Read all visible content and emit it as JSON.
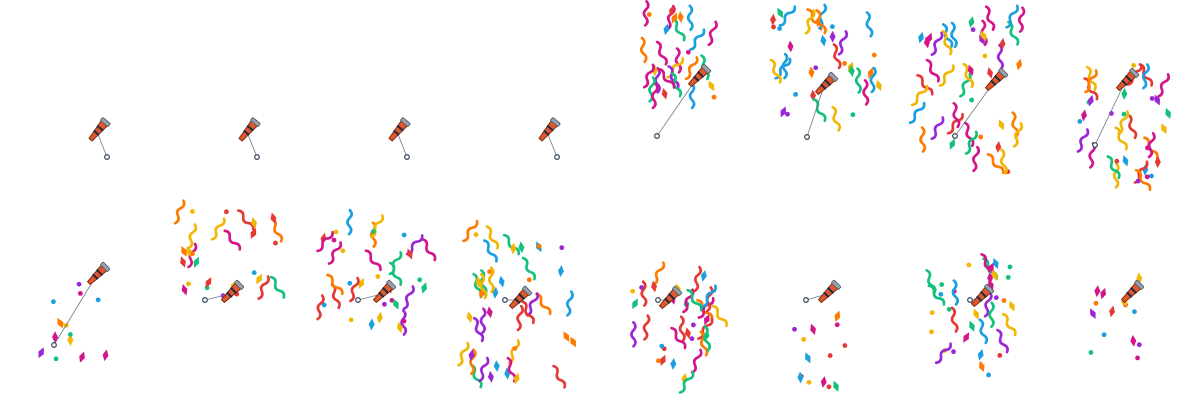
{
  "sprite_sheet": {
    "rows": 2,
    "frames_per_row": 8,
    "frames": [
      {
        "stage": "popper-idle",
        "burst": 0
      },
      {
        "stage": "popper-idle",
        "burst": 0
      },
      {
        "stage": "popper-idle",
        "burst": 0
      },
      {
        "stage": "popper-idle",
        "burst": 0
      },
      {
        "stage": "popper-fired",
        "burst": 1
      },
      {
        "stage": "confetti-spread",
        "burst": 2
      },
      {
        "stage": "confetti-spread",
        "burst": 3
      },
      {
        "stage": "confetti-falling",
        "burst": 2
      },
      {
        "stage": "confetti-falling",
        "burst": 1
      },
      {
        "stage": "popper-fired",
        "burst": 1
      },
      {
        "stage": "confetti-spread",
        "burst": 2
      },
      {
        "stage": "confetti-spread",
        "burst": 3
      },
      {
        "stage": "confetti-falling",
        "burst": 2
      },
      {
        "stage": "confetti-falling",
        "burst": 1
      },
      {
        "stage": "confetti-spread",
        "burst": 2
      },
      {
        "stage": "confetti-falling",
        "burst": 1
      }
    ]
  },
  "icons": {
    "popper": "party-popper-icon",
    "pull_string": "pull-string-icon",
    "ring": "pull-ring-icon",
    "streamer": "streamer-icon",
    "diamond": "confetti-diamond-icon",
    "dot": "confetti-dot-icon"
  },
  "colors": {
    "background": "#ffffff",
    "popper_body": "#e2572b",
    "popper_stripe": "#1f2a44",
    "popper_cap": "#9aa3ad",
    "string": "#6c7a89",
    "confetti": [
      "#d4148a",
      "#f2b705",
      "#1aa0e0",
      "#14c17a",
      "#9b26d6",
      "#e53935",
      "#ff7a00"
    ]
  }
}
